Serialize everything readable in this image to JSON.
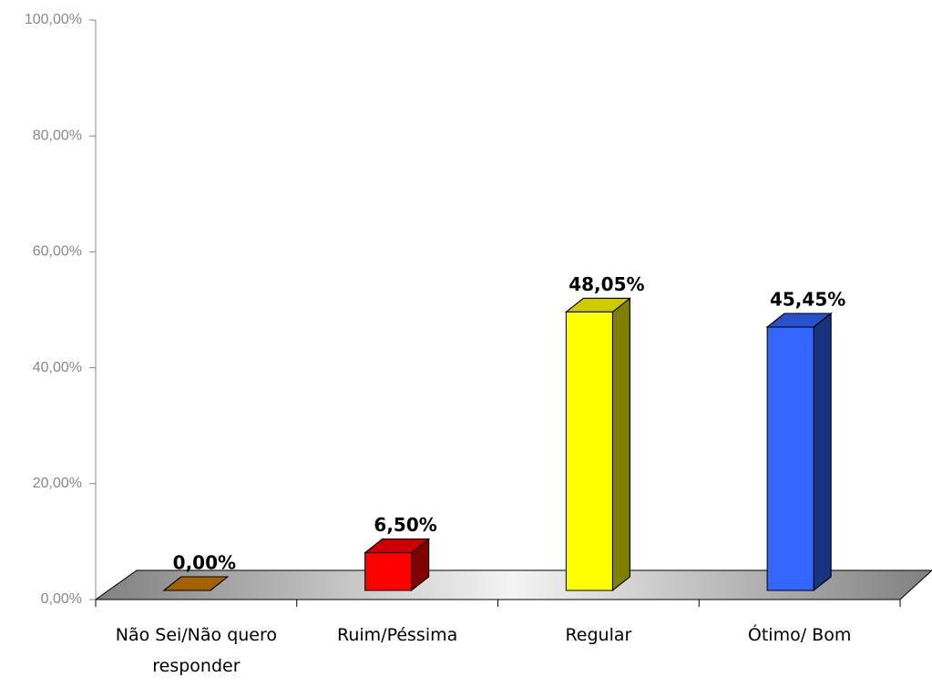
{
  "chart_data": {
    "type": "bar3d",
    "categories": [
      "Não Sei/Não quero responder",
      "Ruim/Péssima",
      "Regular",
      "Ótimo/ Bom"
    ],
    "values": [
      0,
      6.5,
      48.05,
      45.45
    ],
    "value_labels": [
      "0,00%",
      "6,50%",
      "48,05%",
      "45,45%"
    ],
    "colors": [
      "#cc7a00",
      "#ff0000",
      "#ffff00",
      "#3366ff"
    ],
    "ylim": [
      0,
      100
    ],
    "yticks": [
      {
        "value": 0,
        "label": "0,00%"
      },
      {
        "value": 20,
        "label": "20,00%"
      },
      {
        "value": 40,
        "label": "40,00%"
      },
      {
        "value": 60,
        "label": "60,00%"
      },
      {
        "value": 80,
        "label": "80,00%"
      },
      {
        "value": 100,
        "label": "100,00%"
      }
    ]
  }
}
